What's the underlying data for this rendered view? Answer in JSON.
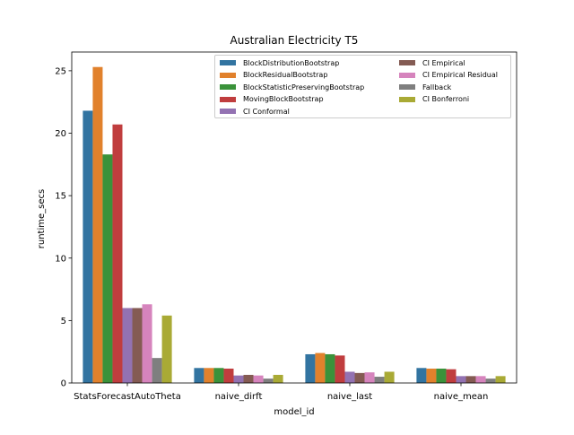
{
  "chart_data": {
    "type": "bar",
    "title": "Australian Electricity T5",
    "xlabel": "model_id",
    "ylabel": "runtime_secs",
    "ylim": [
      0,
      26.5
    ],
    "yticks": [
      0,
      5,
      10,
      15,
      20,
      25
    ],
    "grid": false,
    "legend_position": "top-right",
    "categories": [
      "StatsForecastAutoTheta",
      "naive_dirft",
      "naive_last",
      "naive_mean"
    ],
    "series": [
      {
        "name": "BlockDistributionBootstrap",
        "color": "#3274a1",
        "values": [
          21.8,
          1.2,
          2.3,
          1.2
        ]
      },
      {
        "name": "BlockResidualBootstrap",
        "color": "#e1812c",
        "values": [
          25.3,
          1.2,
          2.4,
          1.15
        ]
      },
      {
        "name": "BlockStatisticPreservingBootstrap",
        "color": "#3a923a",
        "values": [
          18.3,
          1.2,
          2.3,
          1.15
        ]
      },
      {
        "name": "MovingBlockBootstrap",
        "color": "#c03d3e",
        "values": [
          20.7,
          1.15,
          2.2,
          1.1
        ]
      },
      {
        "name": "CI Conformal",
        "color": "#9372b2",
        "values": [
          6.0,
          0.6,
          0.9,
          0.55
        ]
      },
      {
        "name": "CI Empirical",
        "color": "#845b53",
        "values": [
          6.0,
          0.65,
          0.8,
          0.55
        ]
      },
      {
        "name": "CI Empirical Residual",
        "color": "#d684bd",
        "values": [
          6.3,
          0.6,
          0.85,
          0.55
        ]
      },
      {
        "name": "Fallback",
        "color": "#7f7f7f",
        "values": [
          2.0,
          0.35,
          0.5,
          0.35
        ]
      },
      {
        "name": "CI Bonferroni",
        "color": "#a9aa35",
        "values": [
          5.4,
          0.65,
          0.9,
          0.55
        ]
      }
    ]
  }
}
